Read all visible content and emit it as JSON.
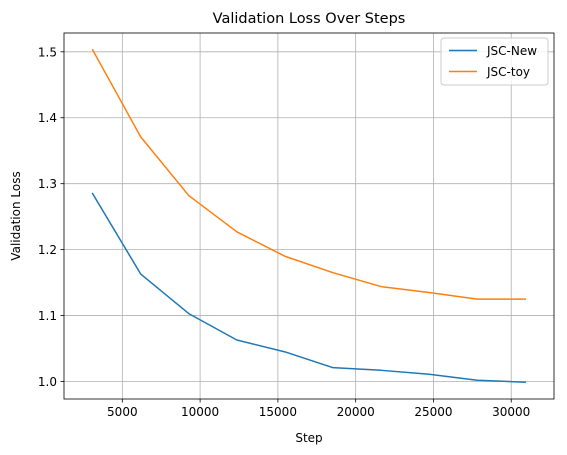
{
  "chart_data": {
    "type": "line",
    "title": "Validation Loss Over Steps",
    "xlabel": "Step",
    "ylabel": "Validation Loss",
    "xlim": [
      1250,
      32750
    ],
    "ylim": [
      0.9735,
      1.5285
    ],
    "xticks": [
      5000,
      10000,
      15000,
      20000,
      25000,
      30000
    ],
    "xtick_labels": [
      "5000",
      "10000",
      "15000",
      "20000",
      "25000",
      "30000"
    ],
    "yticks": [
      1.0,
      1.1,
      1.2,
      1.3,
      1.4,
      1.5
    ],
    "ytick_labels": [
      "1.0",
      "1.1",
      "1.2",
      "1.3",
      "1.4",
      "1.5"
    ],
    "grid": true,
    "legend_position": "top-right",
    "series": [
      {
        "name": "JSC-New",
        "color": "#1f77b4",
        "x": [
          3090,
          6180,
          9270,
          12360,
          15450,
          18540,
          21630,
          24720,
          27810,
          30900
        ],
        "y": [
          1.285,
          1.163,
          1.103,
          1.063,
          1.045,
          1.021,
          1.017,
          1.011,
          1.002,
          0.999
        ]
      },
      {
        "name": "JSC-toy",
        "color": "#ff7f0e",
        "x": [
          3090,
          6180,
          9270,
          12360,
          15450,
          18540,
          21630,
          24720,
          27810,
          30900
        ],
        "y": [
          1.503,
          1.371,
          1.282,
          1.227,
          1.19,
          1.165,
          1.144,
          1.135,
          1.125,
          1.125
        ]
      }
    ]
  }
}
